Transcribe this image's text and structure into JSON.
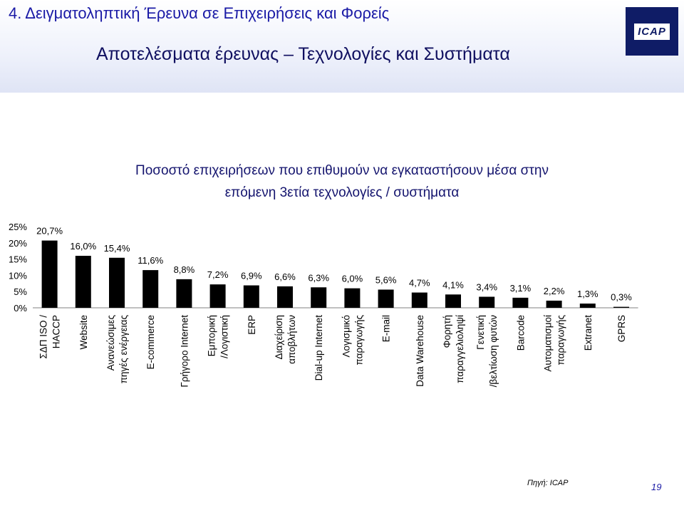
{
  "slide": {
    "section_title": "4. Δειγματοληπτική Έρευνα σε Επιχειρήσεις και Φορείς",
    "subtitle": "Αποτελέσματα έρευνας – Τεχνολογίες και Συστήματα",
    "logo_text": "ICAP",
    "source": "Πηγή: ICAP",
    "page_number": "19"
  },
  "chart_data": {
    "type": "bar",
    "title_lines": [
      "Ποσοστό επιχειρήσεων που επιθυμούν να εγκαταστήσουν μέσα στην",
      "επόμενη 3ετία τεχνολογίες / συστήματα"
    ],
    "categories": [
      [
        "ΣΔΠ ISO /",
        "HACCP"
      ],
      [
        "Website"
      ],
      [
        "Ανανεώσιμες",
        "πηγές ενέργειας"
      ],
      [
        "E-commerce"
      ],
      [
        "Γρήγορο Internet"
      ],
      [
        "Εμπορική",
        "/Λογιστική"
      ],
      [
        "ERP"
      ],
      [
        "Διαχείριση",
        "αποβλήτων"
      ],
      [
        "Dial-up Internet"
      ],
      [
        "Λογισμικό",
        "παραγωγής"
      ],
      [
        "E-mail"
      ],
      [
        "Data Warehouse"
      ],
      [
        "Φορητή",
        "παραγγελιοληψί"
      ],
      [
        "Γενετική",
        "/βελτίωση φυτών"
      ],
      [
        "Barcode"
      ],
      [
        "Αυτοματισμοί",
        "παραγωγής"
      ],
      [
        "Extranet"
      ],
      [
        "GPRS"
      ]
    ],
    "values": [
      20.7,
      16.0,
      15.4,
      11.6,
      8.8,
      7.2,
      6.9,
      6.6,
      6.3,
      6.0,
      5.6,
      4.7,
      4.1,
      3.4,
      3.1,
      2.2,
      1.3,
      0.3
    ],
    "value_labels": [
      "20,7%",
      "16,0%",
      "15,4%",
      "11,6%",
      "8,8%",
      "7,2%",
      "6,9%",
      "6,6%",
      "6,3%",
      "6,0%",
      "5,6%",
      "4,7%",
      "4,1%",
      "3,4%",
      "3,1%",
      "2,2%",
      "1,3%",
      "0,3%"
    ],
    "y_ticks": [
      0,
      5,
      10,
      15,
      20,
      25
    ],
    "y_tick_labels": [
      "0%",
      "5%",
      "10%",
      "15%",
      "20%",
      "25%"
    ],
    "ylim": [
      0,
      25
    ],
    "bar_color": "#000000",
    "grid": false,
    "legend": "none"
  }
}
